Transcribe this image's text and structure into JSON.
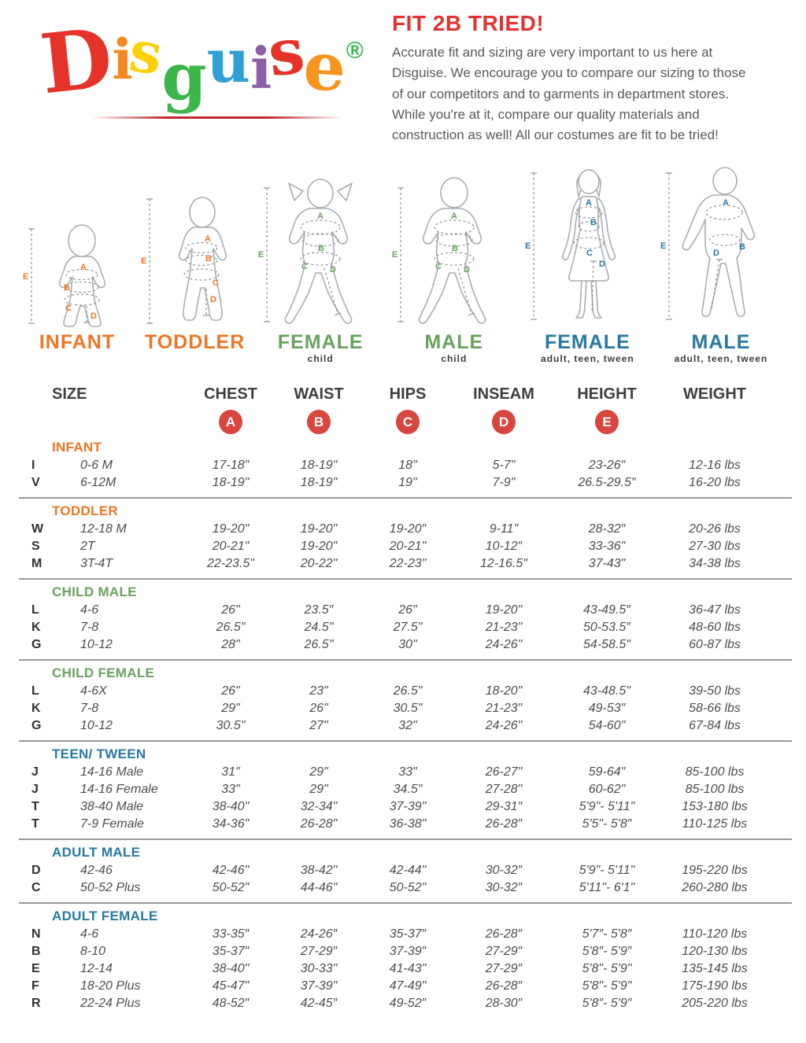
{
  "colors": {
    "accent_red": "#e23232",
    "circle_red": "#d9453f",
    "orange": "#ee7623",
    "green": "#69a25e",
    "blue": "#2878a3"
  },
  "logo": {
    "letters": [
      {
        "ch": "D",
        "color": "#e63329"
      },
      {
        "ch": "i",
        "color": "#f5891f"
      },
      {
        "ch": "s",
        "color": "#ffd103"
      },
      {
        "ch": "g",
        "color": "#3cb54a"
      },
      {
        "ch": "u",
        "color": "#2f9fd6"
      },
      {
        "ch": "i",
        "color": "#8b5ea7"
      },
      {
        "ch": "s",
        "color": "#e63329"
      },
      {
        "ch": "e",
        "color": "#f7941d"
      }
    ],
    "registered": "®"
  },
  "intro": {
    "title": "FIT 2B TRIED!",
    "text": "Accurate fit and sizing are very important to us here at Disguise. We encourage you to compare our sizing to those of our competitors and to garments in department stores. While you're at it, compare our quality materials and construction as well! All our costumes are fit to be tried!"
  },
  "figures": [
    {
      "caption": "INFANT",
      "sub": "",
      "marks": {
        "a": "A",
        "b": "B",
        "c": "C",
        "d": "D",
        "e": "E"
      }
    },
    {
      "caption": "TODDLER",
      "sub": "",
      "marks": {
        "a": "A",
        "b": "B",
        "c": "C",
        "d": "D",
        "e": "E"
      }
    },
    {
      "caption": "FEMALE",
      "sub": "child",
      "marks": {
        "a": "A",
        "b": "B",
        "c": "C",
        "d": "D",
        "e": "E"
      }
    },
    {
      "caption": "MALE",
      "sub": "child",
      "marks": {
        "a": "A",
        "b": "B",
        "c": "C",
        "d": "D",
        "e": "E"
      }
    },
    {
      "caption": "FEMALE",
      "sub": "adult, teen, tween",
      "marks": {
        "a": "A",
        "b": "B",
        "c": "C",
        "d": "D",
        "e": "E"
      }
    },
    {
      "caption": "MALE",
      "sub": "adult, teen, tween",
      "marks": {
        "a": "A",
        "b": "B",
        "d": "D",
        "e": "E"
      }
    }
  ],
  "table": {
    "columns": [
      "SIZE",
      "CHEST",
      "WAIST",
      "HIPS",
      "INSEAM",
      "HEIGHT",
      "WEIGHT"
    ],
    "letters": [
      "A",
      "B",
      "C",
      "D",
      "E"
    ],
    "sections": [
      {
        "name": "INFANT",
        "color": "orange",
        "rows": [
          {
            "code": "I",
            "size": "0-6 M",
            "values": [
              "17-18\"",
              "18-19\"",
              "18\"",
              "5-7\"",
              "23-26″",
              "12-16 lbs"
            ]
          },
          {
            "code": "V",
            "size": "6-12M",
            "values": [
              "18-19\"",
              "18-19\"",
              "19\"",
              "7-9\"",
              "26.5-29.5″",
              "16-20 lbs"
            ]
          }
        ]
      },
      {
        "name": "TODDLER",
        "color": "orange",
        "rows": [
          {
            "code": "W",
            "size": "12-18 M",
            "values": [
              "19-20\"",
              "19-20\"",
              "19-20″",
              "9-11\"",
              "28-32″",
              "20-26 lbs"
            ]
          },
          {
            "code": "S",
            "size": "2T",
            "values": [
              "20-21\"",
              "19-20\"",
              "20-21\"",
              "10-12″",
              "33-36\"",
              "27-30 lbs"
            ]
          },
          {
            "code": "M",
            "size": "3T-4T",
            "values": [
              "22-23.5\"",
              "20-22\"",
              "22-23\"",
              "12-16.5″",
              "37-43\"",
              "34-38 lbs"
            ]
          }
        ]
      },
      {
        "name": "CHILD MALE",
        "color": "green",
        "rows": [
          {
            "code": "L",
            "size": "4-6",
            "values": [
              "26\"",
              "23.5″",
              "26\"",
              "19-20\"",
              "43-49.5″",
              "36-47 lbs"
            ]
          },
          {
            "code": "K",
            "size": "7-8",
            "values": [
              "26.5\"",
              "24.5\"",
              "27.5\"",
              "21-23\"",
              "50-53.5″",
              "48-60 lbs"
            ]
          },
          {
            "code": "G",
            "size": "10-12",
            "values": [
              "28\"",
              "26.5\"",
              "30\"",
              "24-26\"",
              "54-58.5\"",
              "60-87 lbs"
            ]
          }
        ]
      },
      {
        "name": "CHILD FEMALE",
        "color": "green",
        "rows": [
          {
            "code": "L",
            "size": "4-6X",
            "values": [
              "26\"",
              "23\"",
              "26.5\"",
              "18-20\"",
              "43-48.5\"",
              "39-50 lbs"
            ]
          },
          {
            "code": "K",
            "size": "7-8",
            "values": [
              "29\"",
              "26\"",
              "30.5\"",
              "21-23\"",
              "49-53\"",
              "58-66 lbs"
            ]
          },
          {
            "code": "G",
            "size": "10-12",
            "values": [
              "30.5\"",
              "27\"",
              "32\"",
              "24-26\"",
              "54-60\"",
              "67-84 lbs"
            ]
          }
        ]
      },
      {
        "name": "TEEN/ TWEEN",
        "color": "blue",
        "rows": [
          {
            "code": "J",
            "size": "14-16 Male",
            "values": [
              "31\"",
              "29\"",
              "33\"",
              "26-27\"",
              "59-64\"",
              "85-100 lbs"
            ]
          },
          {
            "code": "J",
            "size": "14-16 Female",
            "values": [
              "33\"",
              "29\"",
              "34.5\"",
              "27-28\"",
              "60-62\"",
              "85-100 lbs"
            ]
          },
          {
            "code": "T",
            "size": "38-40 Male",
            "values": [
              "38-40\"",
              "32-34\"",
              "37-39\"",
              "29-31″",
              "5'9\"- 5'11\"",
              "153-180 lbs"
            ]
          },
          {
            "code": "T",
            "size": "7-9 Female",
            "values": [
              "34-36\"",
              "26-28\"",
              "36-38\"",
              "26-28″",
              "5'5\"- 5'8″",
              "110-125 lbs"
            ]
          }
        ]
      },
      {
        "name": "ADULT MALE",
        "color": "blue",
        "rows": [
          {
            "code": "D",
            "size": "42-46",
            "values": [
              "42-46\"",
              "38-42\"",
              "42-44\"",
              "30-32″",
              "5'9\"- 5'11\"",
              "195-220 lbs"
            ]
          },
          {
            "code": "C",
            "size": "50-52 Plus",
            "values": [
              "50-52\"",
              "44-46\"",
              "50-52\"",
              "30-32″",
              "5'11\"- 6'1\"",
              "260-280 lbs"
            ]
          }
        ]
      },
      {
        "name": "ADULT FEMALE",
        "color": "blue",
        "rows": [
          {
            "code": "N",
            "size": "4-6",
            "values": [
              "33-35″",
              "24-26″",
              "35-37″",
              "26-28″",
              "5'7″- 5'8″",
              "110-120 lbs"
            ]
          },
          {
            "code": "B",
            "size": "8-10",
            "values": [
              "35-37″",
              "27-29″",
              "37-39″",
              "27-29″",
              "5'8″- 5'9″",
              "120-130 lbs"
            ]
          },
          {
            "code": "E",
            "size": "12-14",
            "values": [
              "38-40\"",
              "30-33\"",
              "41-43\"",
              "27-29″",
              "5'8\"- 5'9\"",
              "135-145 lbs"
            ]
          },
          {
            "code": "F",
            "size": "18-20 Plus",
            "values": [
              "45-47\"",
              "37-39\"",
              "47-49\"",
              "26-28″",
              "5'8\"- 5'9\"",
              "175-190 lbs"
            ]
          },
          {
            "code": "R",
            "size": "22-24 Plus",
            "values": [
              "48-52″",
              "42-45″",
              "49-52″",
              "28-30″",
              "5'8″- 5'9″",
              "205-220 lbs"
            ]
          }
        ]
      }
    ]
  }
}
